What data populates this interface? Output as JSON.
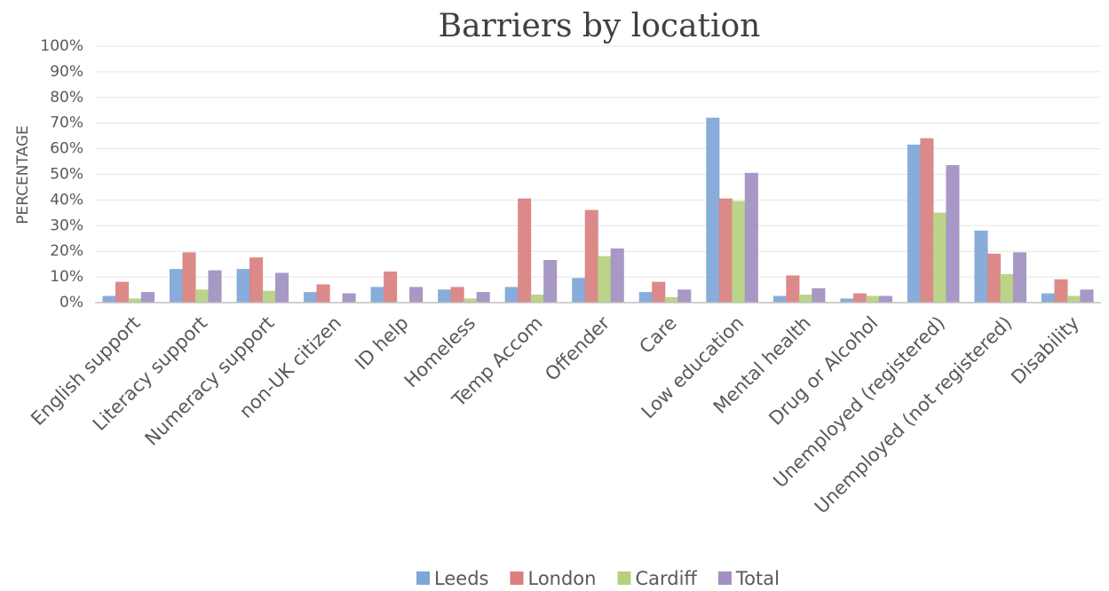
{
  "chart_data": {
    "type": "bar",
    "title": "Barriers by location",
    "y_label": "PERCENTAGE",
    "categories": [
      "English support",
      "Literacy support",
      "Numeracy support",
      "non-UK citizen",
      "ID help",
      "Homeless",
      "Temp Accom",
      "Offender",
      "Care",
      "Low education",
      "Mental health",
      "Drug or Alcohol",
      "Unemployed (registered)",
      "Unemployed (not registered)",
      "Disability"
    ],
    "series": [
      {
        "name": "Leeds",
        "color": "#7ea6d8",
        "values": [
          2.5,
          13,
          13,
          4,
          6,
          5,
          6,
          9.5,
          4,
          72,
          2.5,
          1.5,
          61.5,
          28,
          3.5
        ]
      },
      {
        "name": "London",
        "color": "#d9807f",
        "values": [
          8,
          19.5,
          17.5,
          7,
          12,
          6,
          40.5,
          36,
          8,
          40.5,
          10.5,
          3.5,
          64,
          19,
          9
        ]
      },
      {
        "name": "Cardiff",
        "color": "#b5d07f",
        "values": [
          1.5,
          5,
          4.5,
          0,
          0,
          1.5,
          3,
          18,
          2,
          39.5,
          3,
          2.5,
          35,
          11,
          2.5
        ]
      },
      {
        "name": "Total",
        "color": "#a18fc1",
        "values": [
          4,
          12.5,
          11.5,
          3.5,
          6,
          4,
          16.5,
          21,
          5,
          50.5,
          5.5,
          2.5,
          53.5,
          19.5,
          5
        ]
      }
    ],
    "ylim": [
      0,
      100
    ],
    "yticks": [
      {
        "value": 0,
        "label": "0%"
      },
      {
        "value": 10,
        "label": "10%"
      },
      {
        "value": 20,
        "label": "20%"
      },
      {
        "value": 30,
        "label": "30%"
      },
      {
        "value": 40,
        "label": "40%"
      },
      {
        "value": 50,
        "label": "50%"
      },
      {
        "value": 60,
        "label": "60%"
      },
      {
        "value": 70,
        "label": "70%"
      },
      {
        "value": 80,
        "label": "80%"
      },
      {
        "value": 90,
        "label": "90%"
      },
      {
        "value": 100,
        "label": "100%"
      }
    ],
    "grid": true,
    "legend": "bottom"
  }
}
